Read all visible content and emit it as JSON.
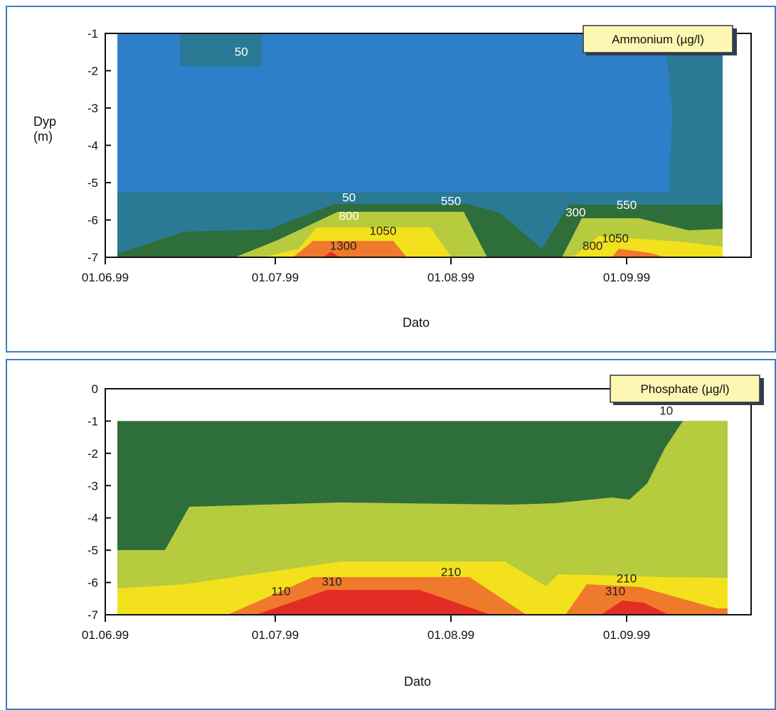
{
  "chart_data": [
    {
      "type": "contour",
      "legend": "Ammonium (µg/l)",
      "xlabel": "Dato",
      "ylabel_line1": "Dyp",
      "ylabel_line2": "(m)",
      "x_ticks": [
        "01.06.99",
        "01.07.99",
        "01.08.99",
        "01.09.99"
      ],
      "y_ticks": [
        "-1",
        "-2",
        "-3",
        "-4",
        "-5",
        "-6",
        "-7"
      ],
      "y_range": [
        -7,
        -1
      ],
      "contour_levels": [
        50,
        300,
        550,
        800,
        1050,
        1300
      ],
      "contour_labels": [
        {
          "text": "50",
          "date": "1999-06-25",
          "depth": -1.6,
          "color": "#ffffff"
        },
        {
          "text": "50",
          "date": "1999-07-14",
          "depth": -5.5,
          "color": "#ffffff"
        },
        {
          "text": "800",
          "date": "1999-07-14",
          "depth": -6.0,
          "color": "#ffffff"
        },
        {
          "text": "1050",
          "date": "1999-07-20",
          "depth": -6.4,
          "color": "#222222"
        },
        {
          "text": "1300",
          "date": "1999-07-13",
          "depth": -6.8,
          "color": "#222222"
        },
        {
          "text": "550",
          "date": "1999-08-01",
          "depth": -5.6,
          "color": "#ffffff"
        },
        {
          "text": "300",
          "date": "1999-08-23",
          "depth": -5.9,
          "color": "#ffffff"
        },
        {
          "text": "550",
          "date": "1999-09-01",
          "depth": -5.7,
          "color": "#ffffff"
        },
        {
          "text": "800",
          "date": "1999-08-26",
          "depth": -6.8,
          "color": "#222222"
        },
        {
          "text": "1050",
          "date": "1999-08-30",
          "depth": -6.6,
          "color": "#222222"
        }
      ],
      "colors": {
        "blue": "#2e7fc9",
        "teal": "#2a7a96",
        "darkgreen": "#2e6e3a",
        "lightgreen": "#b6cb3e",
        "yellow": "#f2e11c",
        "orange": "#f07a2b",
        "red": "#e32d24"
      }
    },
    {
      "type": "contour",
      "legend": "Phosphate (µg/l)",
      "xlabel": "Dato",
      "x_ticks": [
        "01.06.99",
        "01.07.99",
        "01.08.99",
        "01.09.99"
      ],
      "y_ticks": [
        "0",
        "-1",
        "-2",
        "-3",
        "-4",
        "-5",
        "-6",
        "-7"
      ],
      "y_range": [
        -7,
        0
      ],
      "contour_levels": [
        10,
        110,
        210,
        310
      ],
      "contour_labels": [
        {
          "text": "10",
          "date": "1999-09-08",
          "depth": -0.8,
          "color": "#222222"
        },
        {
          "text": "110",
          "date": "1999-07-02",
          "depth": -6.4,
          "color": "#222222"
        },
        {
          "text": "310",
          "date": "1999-07-11",
          "depth": -6.1,
          "color": "#222222"
        },
        {
          "text": "210",
          "date": "1999-08-01",
          "depth": -5.8,
          "color": "#222222"
        },
        {
          "text": "210",
          "date": "1999-09-01",
          "depth": -6.0,
          "color": "#222222"
        },
        {
          "text": "310",
          "date": "1999-08-30",
          "depth": -6.4,
          "color": "#222222"
        }
      ],
      "colors": {
        "darkgreen": "#2e6e3a",
        "lightgreen": "#b6cb3e",
        "yellow": "#f2e11c",
        "orange": "#f07a2b",
        "red": "#e32d24"
      }
    }
  ]
}
